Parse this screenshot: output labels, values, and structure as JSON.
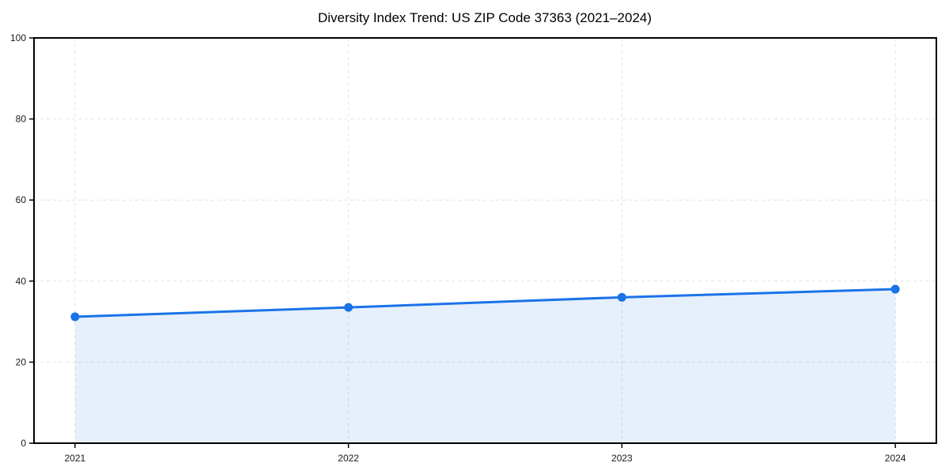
{
  "chart_data": {
    "type": "area",
    "title": "Diversity Index Trend: US ZIP Code 37363 (2021–2024)",
    "x": [
      2021,
      2022,
      2023,
      2024
    ],
    "xticks": [
      "2021",
      "2022",
      "2023",
      "2024"
    ],
    "series": [
      {
        "name": "Diversity Index",
        "values": [
          31.2,
          33.5,
          36.0,
          38.0
        ]
      }
    ],
    "xlabel": "",
    "ylabel": "",
    "ylim": [
      0,
      100
    ],
    "yticks": [
      0,
      20,
      40,
      60,
      80,
      100
    ],
    "grid": "dashed-both-axes",
    "legend": "none",
    "colors": {
      "line": "#1a73e8",
      "marker": "#1a73e8",
      "fill_rgba": "rgba(26,115,232,0.11)",
      "grid": "#e3e3e3",
      "axis": "#000000",
      "tick_label": "#1a1a1a",
      "background": "#ffffff"
    }
  }
}
